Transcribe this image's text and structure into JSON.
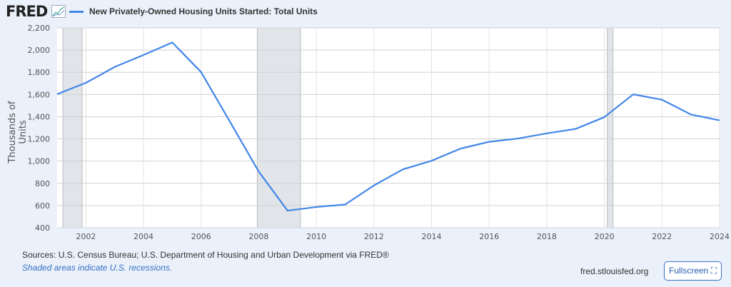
{
  "header": {
    "logo": "FRED",
    "logo_icon": "chart-line-icon",
    "series_title": "New Privately-Owned Housing Units Started: Total Units"
  },
  "footer": {
    "sources": "Sources: U.S. Census Bureau; U.S. Department of Housing and Urban Development via FRED®",
    "recession_note": "Shaded areas indicate U.S. recessions.",
    "site": "fred.stlouisfed.org",
    "fullscreen_label": "Fullscreen ⛶"
  },
  "colors": {
    "line": "#4286e8",
    "recession": "#e1e5ea",
    "background": "#eaf1fa"
  },
  "chart_data": {
    "type": "line",
    "title": "New Privately-Owned Housing Units Started: Total Units",
    "xlabel": "",
    "ylabel": "Thousands of Units",
    "xlim": [
      2001,
      2024
    ],
    "ylim": [
      400,
      2200
    ],
    "yticks": [
      400,
      600,
      800,
      1000,
      1200,
      1400,
      1600,
      1800,
      2000,
      2200
    ],
    "ytick_labels": [
      "400",
      "600",
      "800",
      "1,000",
      "1,200",
      "1,400",
      "1,600",
      "1,800",
      "2,000",
      "2,200"
    ],
    "xticks": [
      2002,
      2004,
      2006,
      2008,
      2010,
      2012,
      2014,
      2016,
      2018,
      2020,
      2022,
      2024
    ],
    "grid": true,
    "recessions": [
      [
        2001.2,
        2001.87
      ],
      [
        2007.95,
        2009.45
      ],
      [
        2020.1,
        2020.3
      ]
    ],
    "series": [
      {
        "name": "New Privately-Owned Housing Units Started: Total Units",
        "x": [
          2001,
          2002,
          2003,
          2004,
          2005,
          2006,
          2007,
          2008,
          2009,
          2010,
          2011,
          2012,
          2013,
          2014,
          2015,
          2016,
          2017,
          2018,
          2019,
          2020,
          2021,
          2022,
          2023,
          2024
        ],
        "values": [
          1603,
          1705,
          1848,
          1956,
          2068,
          1801,
          1355,
          906,
          554,
          587,
          609,
          781,
          925,
          1003,
          1112,
          1174,
          1203,
          1250,
          1290,
          1396,
          1601,
          1553,
          1420,
          1367
        ]
      }
    ]
  }
}
